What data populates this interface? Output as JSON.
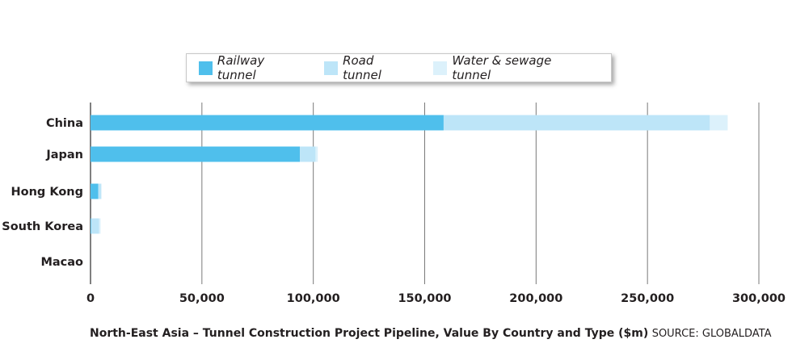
{
  "chart_data": {
    "type": "bar",
    "orientation": "horizontal",
    "stacked": true,
    "categories": [
      "China",
      "Japan",
      "Hong Kong",
      "South Korea",
      "Macao"
    ],
    "series": [
      {
        "name": "Railway tunnel",
        "color": "#4fbfec",
        "values": [
          158500,
          94000,
          3500,
          300,
          0
        ]
      },
      {
        "name": "Road tunnel",
        "color": "#bde5f8",
        "values": [
          119500,
          7000,
          1200,
          3500,
          0
        ]
      },
      {
        "name": "Water & sewage tunnel",
        "color": "#dcf1fb",
        "values": [
          8000,
          1000,
          300,
          700,
          0
        ]
      }
    ],
    "xlim": [
      0,
      300000
    ],
    "ticks": [
      0,
      50000,
      100000,
      150000,
      200000,
      250000,
      300000
    ],
    "tick_labels": [
      "0",
      "50,000",
      "100,000",
      "150,000",
      "200,000",
      "250,000",
      "300,000"
    ],
    "grid": true,
    "legend_position": "top-center",
    "title": "North-East Asia – Tunnel Construction Project Pipeline, Value By Country and Type ($m)",
    "source": "SOURCE: GLOBALDATA"
  }
}
